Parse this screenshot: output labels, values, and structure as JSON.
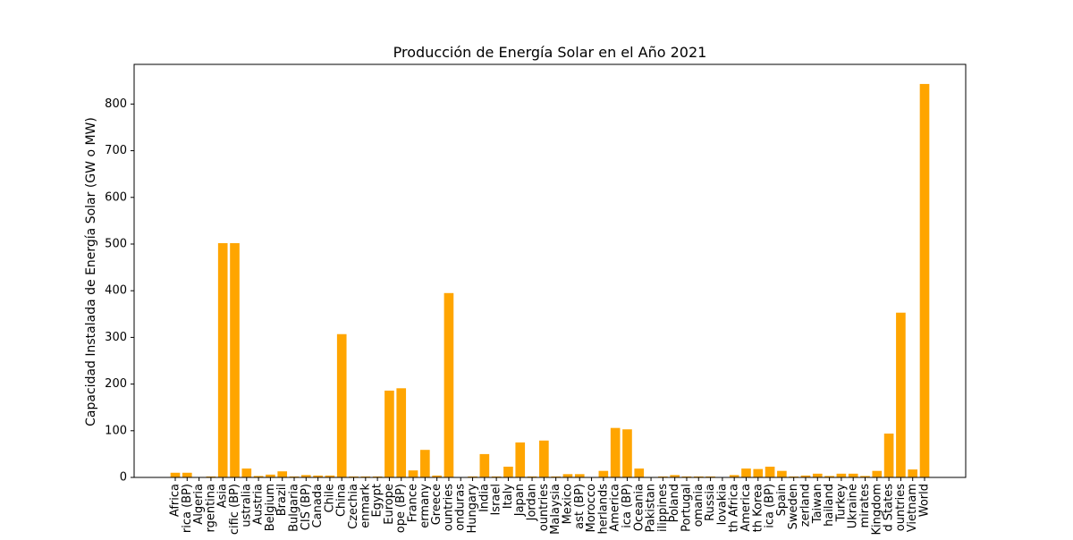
{
  "chart_data": {
    "type": "bar",
    "title": "Producción de Energía Solar en el Año 2021",
    "xlabel": "",
    "ylabel": "Capacidad Instalada de Energía Solar (GW o MW)",
    "ylim": [
      0,
      885
    ],
    "yticks": [
      0,
      100,
      200,
      300,
      400,
      500,
      600,
      700,
      800
    ],
    "grid": false,
    "bar_color": "#ffa500",
    "categories": [
      "Africa",
      "rica (BP)",
      "Algeria",
      "rgentina",
      "Asia",
      "cific (BP)",
      "ustralia",
      "Austria",
      "Belgium",
      "Brazil",
      "Bulgaria",
      "CIS (BP)",
      "Canada",
      "Chile",
      "China",
      "Czechia",
      "enmark",
      "Egypt",
      "Europe",
      "ope (BP)",
      "France",
      "ermany",
      "Greece",
      "ountries",
      "onduras",
      "Hungary",
      "India",
      "Israel",
      "Italy",
      "Japan",
      "Jordan",
      "ountries",
      "Malaysia",
      "Mexico",
      "ast (BP)",
      "Morocco",
      "herlands",
      "America",
      "ica (BP)",
      "Oceania",
      "Pakistan",
      "ilippines",
      "Poland",
      "Portugal",
      "omania",
      "Russia",
      "lovakia",
      "th Africa",
      "America",
      "th Korea",
      "ica (BP)",
      "Spain",
      "Sweden",
      "zerland",
      "Taiwan",
      "hailand",
      "Turkey",
      "Ukraine",
      "mirates",
      "Kingdom",
      "d States",
      "ountries",
      "Vietnam",
      "World"
    ],
    "values": [
      10,
      10,
      1,
      2,
      502,
      502,
      19,
      3,
      6,
      13,
      2,
      5,
      4,
      4,
      307,
      2,
      2,
      2,
      186,
      191,
      15,
      59,
      4,
      395,
      0.5,
      2,
      50,
      2,
      23,
      75,
      2,
      79,
      2,
      7,
      7,
      1,
      14,
      106,
      103,
      19,
      1,
      2,
      5,
      2,
      2,
      2,
      0.5,
      5,
      19,
      18,
      23,
      14,
      2,
      4,
      8,
      3,
      8,
      8,
      3,
      14,
      94,
      353,
      17,
      843
    ]
  }
}
